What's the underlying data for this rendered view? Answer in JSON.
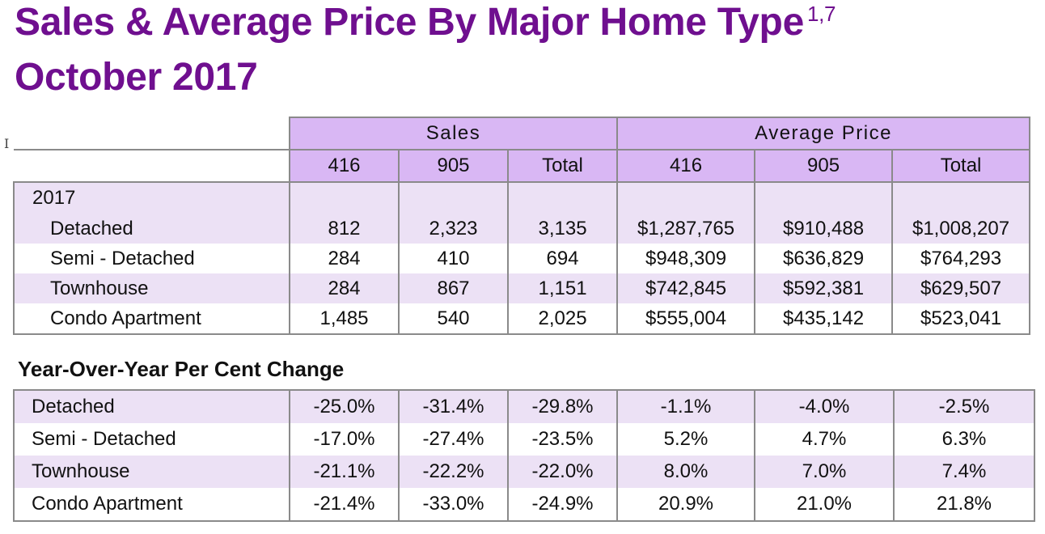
{
  "title": {
    "line1": "Sales & Average Price By Major Home Type",
    "footnote": "1,7",
    "line2": "October 2017"
  },
  "main_table": {
    "group_headers": [
      "Sales",
      "Average Price"
    ],
    "sub_headers": [
      "416",
      "905",
      "Total",
      "416",
      "905",
      "Total"
    ],
    "year_label": "2017",
    "rows": [
      {
        "label": "Detached",
        "values": [
          "812",
          "2,323",
          "3,135",
          "$1,287,765",
          "$910,488",
          "$1,008,207"
        ]
      },
      {
        "label": "Semi - Detached",
        "values": [
          "284",
          "410",
          "694",
          "$948,309",
          "$636,829",
          "$764,293"
        ]
      },
      {
        "label": "Townhouse",
        "values": [
          "284",
          "867",
          "1,151",
          "$742,845",
          "$592,381",
          "$629,507"
        ]
      },
      {
        "label": "Condo Apartment",
        "values": [
          "1,485",
          "540",
          "2,025",
          "$555,004",
          "$435,142",
          "$523,041"
        ]
      }
    ]
  },
  "yoy_table": {
    "heading": "Year-Over-Year Per Cent Change",
    "rows": [
      {
        "label": "Detached",
        "values": [
          "-25.0%",
          "-31.4%",
          "-29.8%",
          "-1.1%",
          "-4.0%",
          "-2.5%"
        ]
      },
      {
        "label": "Semi - Detached",
        "values": [
          "-17.0%",
          "-27.4%",
          "-23.5%",
          "5.2%",
          "4.7%",
          "6.3%"
        ]
      },
      {
        "label": "Townhouse",
        "values": [
          "-21.1%",
          "-22.2%",
          "-22.0%",
          "8.0%",
          "7.0%",
          "7.4%"
        ]
      },
      {
        "label": "Condo Apartment",
        "values": [
          "-21.4%",
          "-33.0%",
          "-24.9%",
          "20.9%",
          "21.0%",
          "21.8%"
        ]
      }
    ]
  }
}
